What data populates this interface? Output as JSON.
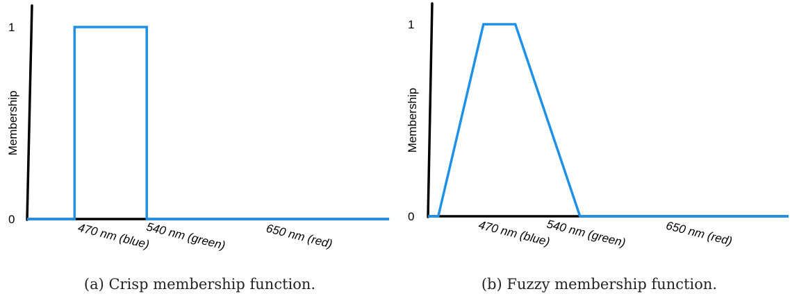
{
  "colors": {
    "axis": "#000000",
    "series": "#1E90E6"
  },
  "chart_data": [
    {
      "type": "line",
      "caption": "(a) Crisp membership function.",
      "ylabel": "Membership",
      "xlabel": "",
      "y_ticks": [
        "0",
        "1"
      ],
      "ylim": [
        0,
        1
      ],
      "x_ticks": [
        {
          "value": 470,
          "label": "470 nm (blue)"
        },
        {
          "value": 540,
          "label": "540 nm (green)"
        },
        {
          "value": 650,
          "label": "650 nm (red)"
        }
      ],
      "xlim": [
        387,
        738
      ],
      "series": [
        {
          "points": [
            {
              "x": 387,
              "y": 0
            },
            {
              "x": 433,
              "y": 0
            },
            {
              "x": 433,
              "y": 1
            },
            {
              "x": 503,
              "y": 1
            },
            {
              "x": 503,
              "y": 0
            },
            {
              "x": 738,
              "y": 0
            }
          ]
        }
      ]
    },
    {
      "type": "line",
      "caption": "(b) Fuzzy membership function.",
      "ylabel": "Membership",
      "xlabel": "",
      "y_ticks": [
        "0",
        "1"
      ],
      "ylim": [
        0,
        1
      ],
      "x_ticks": [
        {
          "value": 470,
          "label": "470 nm (blue)"
        },
        {
          "value": 540,
          "label": "540 nm (green)"
        },
        {
          "value": 650,
          "label": "650 nm (red)"
        }
      ],
      "xlim": [
        387,
        738
      ],
      "series": [
        {
          "points": [
            {
              "x": 387,
              "y": 0
            },
            {
              "x": 397,
              "y": 0
            },
            {
              "x": 441,
              "y": 1
            },
            {
              "x": 472,
              "y": 1
            },
            {
              "x": 535,
              "y": 0
            },
            {
              "x": 738,
              "y": 0
            }
          ]
        }
      ]
    }
  ]
}
